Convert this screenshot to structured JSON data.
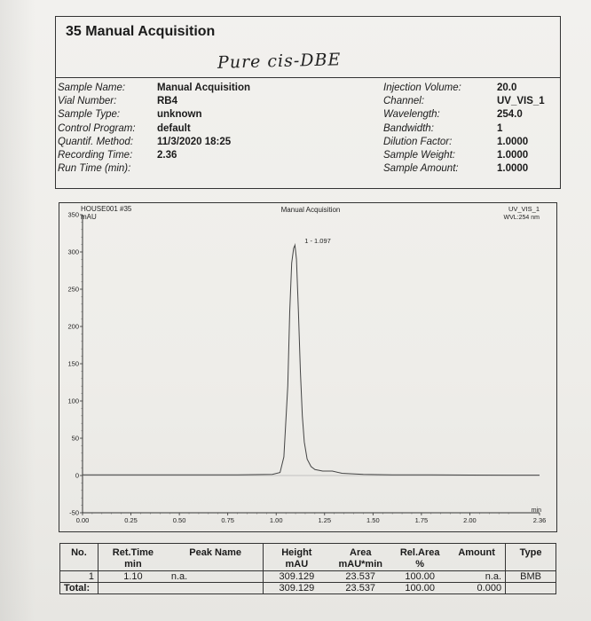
{
  "header": {
    "title": "35  Manual Acquisition",
    "handwritten_note": "Pure cis-DBE"
  },
  "sample_info_left": [
    {
      "label": "Sample Name:",
      "value": "Manual Acquisition"
    },
    {
      "label": "Vial Number:",
      "value": "RB4"
    },
    {
      "label": "Sample Type:",
      "value": "unknown"
    },
    {
      "label": "Control Program:",
      "value": ""
    },
    {
      "label": "Quantif. Method:",
      "value": "default"
    },
    {
      "label": "Recording Time:",
      "value": "11/3/2020 18:25"
    },
    {
      "label": "Run Time (min):",
      "value": "2.36"
    }
  ],
  "sample_info_right": [
    {
      "label": "Injection Volume:",
      "value": "20.0"
    },
    {
      "label": "Channel:",
      "value": "UV_VIS_1"
    },
    {
      "label": "Wavelength:",
      "value": "254.0"
    },
    {
      "label": "Bandwidth:",
      "value": "1"
    },
    {
      "label": "Dilution Factor:",
      "value": "1.0000"
    },
    {
      "label": "Sample Weight:",
      "value": "1.0000"
    },
    {
      "label": "Sample Amount:",
      "value": "1.0000"
    }
  ],
  "chart_data": {
    "type": "line",
    "title": "Manual Acquisition",
    "sample_label": "HOUSE001 #35",
    "ylabel": "mAU",
    "xlabel": "min",
    "channel_label": "UV_VIS_1",
    "wavelength_label": "WVL:254 nm",
    "xlim": [
      0,
      2.36
    ],
    "ylim": [
      -50,
      350
    ],
    "xticks": [
      "0.00",
      "0.25",
      "0.50",
      "0.75",
      "1.00",
      "1.25",
      "1.50",
      "1.75",
      "2.00",
      "2.36"
    ],
    "xtick_values": [
      0,
      0.25,
      0.5,
      0.75,
      1.0,
      1.25,
      1.5,
      1.75,
      2.0,
      2.36
    ],
    "yticks": [
      "-50",
      "0",
      "50",
      "100",
      "150",
      "200",
      "250",
      "300",
      "350"
    ],
    "ytick_values": [
      -50,
      0,
      50,
      100,
      150,
      200,
      250,
      300,
      350
    ],
    "peak_label": "1 - 1.097",
    "series": [
      {
        "x": [
          0,
          0.2,
          0.5,
          0.8,
          0.98,
          1.02,
          1.04,
          1.06,
          1.07,
          1.08,
          1.09,
          1.097,
          1.105,
          1.115,
          1.125,
          1.135,
          1.145,
          1.16,
          1.18,
          1.2,
          1.24,
          1.29,
          1.34,
          1.45,
          1.6,
          1.8,
          2.0,
          2.2,
          2.36
        ],
        "y": [
          1,
          1,
          1,
          1,
          1.5,
          4,
          25,
          120,
          220,
          285,
          305,
          309,
          290,
          220,
          140,
          80,
          45,
          22,
          12,
          8,
          6,
          6,
          3,
          1.5,
          1,
          0.8,
          0.6,
          0.5,
          0.5
        ]
      }
    ]
  },
  "results_table": {
    "headers": [
      "No.",
      "Ret.Time\nmin",
      "Peak Name",
      "Height\nmAU",
      "Area\nmAU*min",
      "Rel.Area\n%",
      "Amount",
      "Type"
    ],
    "rows": [
      [
        "1",
        "1.10",
        "n.a.",
        "309.129",
        "23.537",
        "100.00",
        "n.a.",
        "BMB"
      ]
    ],
    "total": {
      "label": "Total:",
      "height": "309.129",
      "area": "23.537",
      "rel_area": "100.00",
      "amount": "0.000"
    }
  }
}
